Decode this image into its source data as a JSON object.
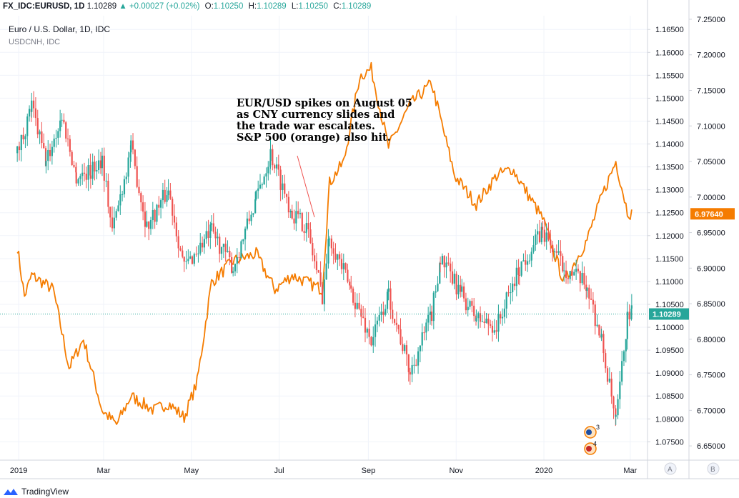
{
  "header": {
    "symbol": "FX_IDC:EURUSD, 1D",
    "last": "1.10289",
    "change": "+0.00027 (+0.02%)",
    "o_label": "O:",
    "o": "1.10250",
    "h_label": "H:",
    "h": "1.10289",
    "l_label": "L:",
    "l": "1.10250",
    "c_label": "C:",
    "c": "1.10289"
  },
  "legend": {
    "main": "Euro / U.S. Dollar, 1D, IDC",
    "secondary": "USDCNH, IDC"
  },
  "annotation": {
    "lines": [
      "EUR/USD spikes on August 05",
      "as CNY currency slides and",
      "the trade war escalates.",
      "S&P 500 (orange) also hit."
    ]
  },
  "badges": {
    "eurusd_last": "1.10289",
    "usdcnh_last": "6.97640"
  },
  "event_markers": {
    "m1": "3",
    "m2": "4"
  },
  "scale_buttons": {
    "a": "A",
    "b": "B"
  },
  "footer": {
    "brand": "TradingView"
  },
  "colors": {
    "up": "#26a69a",
    "down": "#ef5350",
    "usdcnh": "#f57c00",
    "grid": "#f0f3fa",
    "axis": "#d1d4dc",
    "price_line": "#26a69a",
    "badge_cnh": "#f57c00"
  },
  "chart_data": {
    "type": "line",
    "x_ticks": [
      "2019",
      "Mar",
      "May",
      "Jul",
      "Sep",
      "Nov",
      "2020",
      "Mar"
    ],
    "y_ticks_eurusd": [
      "1.07500",
      "1.08000",
      "1.08500",
      "1.09000",
      "1.09500",
      "1.10000",
      "1.10500",
      "1.11000",
      "1.11500",
      "1.12000",
      "1.12500",
      "1.13000",
      "1.13500",
      "1.14000",
      "1.14500",
      "1.15000",
      "1.15500",
      "1.16000",
      "1.16500"
    ],
    "y_ticks_usdcnh": [
      "6.65000",
      "6.70000",
      "6.75000",
      "6.80000",
      "6.85000",
      "6.90000",
      "6.95000",
      "7.00000",
      "7.05000",
      "7.10000",
      "7.15000",
      "7.20000",
      "7.25000"
    ],
    "eurusd_range": [
      1.071,
      1.168
    ],
    "usdcnh_range": [
      6.63,
      7.255
    ],
    "series": [
      {
        "name": "Euro / U.S. Dollar, 1D, IDC",
        "values": [
          [
            "2018-12-31",
            1.138
          ],
          [
            "2019-01-10",
            1.148
          ],
          [
            "2019-01-20",
            1.136
          ],
          [
            "2019-01-31",
            1.146
          ],
          [
            "2019-02-10",
            1.133
          ],
          [
            "2019-02-20",
            1.134
          ],
          [
            "2019-02-28",
            1.137
          ],
          [
            "2019-03-07",
            1.121
          ],
          [
            "2019-03-20",
            1.139
          ],
          [
            "2019-03-31",
            1.122
          ],
          [
            "2019-04-15",
            1.13
          ],
          [
            "2019-04-26",
            1.113
          ],
          [
            "2019-05-15",
            1.121
          ],
          [
            "2019-05-30",
            1.113
          ],
          [
            "2019-06-15",
            1.128
          ],
          [
            "2019-06-25",
            1.138
          ],
          [
            "2019-07-10",
            1.125
          ],
          [
            "2019-07-20",
            1.122
          ],
          [
            "2019-07-31",
            1.107
          ],
          [
            "2019-08-05",
            1.12
          ],
          [
            "2019-08-20",
            1.108
          ],
          [
            "2019-09-03",
            1.097
          ],
          [
            "2019-09-15",
            1.107
          ],
          [
            "2019-09-30",
            1.09
          ],
          [
            "2019-10-15",
            1.103
          ],
          [
            "2019-10-21",
            1.115
          ],
          [
            "2019-11-05",
            1.107
          ],
          [
            "2019-11-15",
            1.102
          ],
          [
            "2019-11-29",
            1.1
          ],
          [
            "2019-12-15",
            1.113
          ],
          [
            "2019-12-31",
            1.121
          ],
          [
            "2020-01-15",
            1.113
          ],
          [
            "2020-01-31",
            1.109
          ],
          [
            "2020-02-10",
            1.097
          ],
          [
            "2020-02-20",
            1.079
          ],
          [
            "2020-02-28",
            1.102
          ],
          [
            "2020-03-02",
            1.10289
          ]
        ]
      },
      {
        "name": "USDCNH, IDC",
        "values": [
          [
            "2018-12-31",
            6.93
          ],
          [
            "2019-01-05",
            6.86
          ],
          [
            "2019-01-10",
            6.89
          ],
          [
            "2019-01-25",
            6.87
          ],
          [
            "2019-02-05",
            6.76
          ],
          [
            "2019-02-15",
            6.8
          ],
          [
            "2019-02-28",
            6.7
          ],
          [
            "2019-03-10",
            6.68
          ],
          [
            "2019-03-20",
            6.72
          ],
          [
            "2019-04-05",
            6.7
          ],
          [
            "2019-04-15",
            6.71
          ],
          [
            "2019-04-26",
            6.69
          ],
          [
            "2019-05-05",
            6.74
          ],
          [
            "2019-05-15",
            6.88
          ],
          [
            "2019-05-30",
            6.91
          ],
          [
            "2019-06-15",
            6.92
          ],
          [
            "2019-06-28",
            6.87
          ],
          [
            "2019-07-10",
            6.89
          ],
          [
            "2019-07-31",
            6.87
          ],
          [
            "2019-08-05",
            7.02
          ],
          [
            "2019-08-15",
            7.05
          ],
          [
            "2019-08-26",
            7.17
          ],
          [
            "2019-09-03",
            7.18
          ],
          [
            "2019-09-15",
            7.07
          ],
          [
            "2019-09-30",
            7.13
          ],
          [
            "2019-10-15",
            7.16
          ],
          [
            "2019-10-31",
            7.03
          ],
          [
            "2019-11-15",
            6.99
          ],
          [
            "2019-11-29",
            7.03
          ],
          [
            "2019-12-10",
            7.04
          ],
          [
            "2019-12-31",
            6.97
          ],
          [
            "2020-01-15",
            6.88
          ],
          [
            "2020-01-31",
            6.94
          ],
          [
            "2020-02-10",
            7.0
          ],
          [
            "2020-02-20",
            7.05
          ],
          [
            "2020-02-28",
            6.98
          ],
          [
            "2020-03-02",
            6.9764
          ]
        ]
      }
    ]
  }
}
